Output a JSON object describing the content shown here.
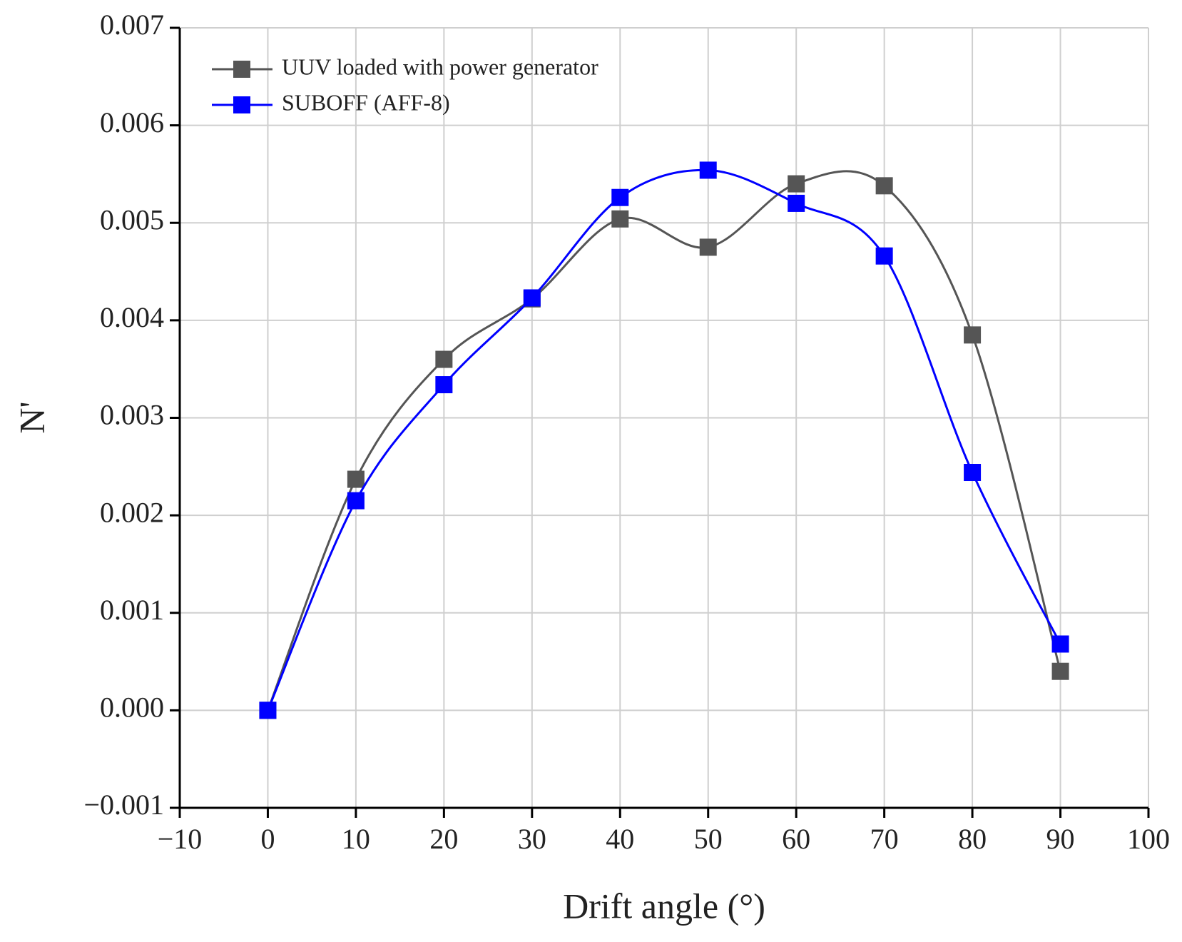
{
  "chart_data": {
    "type": "line",
    "x_label": "Drift angle (°)",
    "y_label": "N'",
    "x": [
      0,
      10,
      20,
      30,
      40,
      50,
      60,
      70,
      80,
      90
    ],
    "series": [
      {
        "name": "UUV loaded with power generator",
        "color": "#555555",
        "values": [
          0,
          0.00237,
          0.0036,
          0.00422,
          0.00504,
          0.00475,
          0.0054,
          0.00538,
          0.00385,
          0.0004
        ]
      },
      {
        "name": "SUBOFF (AFF-8)",
        "color": "#0000ff",
        "values": [
          0,
          0.00215,
          0.00334,
          0.00423,
          0.00526,
          0.00554,
          0.0052,
          0.00466,
          0.00244,
          0.00068
        ]
      }
    ],
    "xlim": [
      -10,
      100
    ],
    "xticks": [
      {
        "value": -10,
        "label": "−10"
      },
      0,
      10,
      20,
      30,
      40,
      50,
      60,
      70,
      80,
      90,
      100
    ],
    "ylim": [
      -0.001,
      0.007
    ],
    "yticks": [
      {
        "value": -0.001,
        "label": "−0.001"
      },
      {
        "value": 0,
        "label": "0.000"
      },
      0.001,
      0.002,
      0.003,
      0.004,
      0.005,
      0.006,
      0.007
    ],
    "grid": true,
    "smooth": true,
    "legend": "upper left"
  }
}
